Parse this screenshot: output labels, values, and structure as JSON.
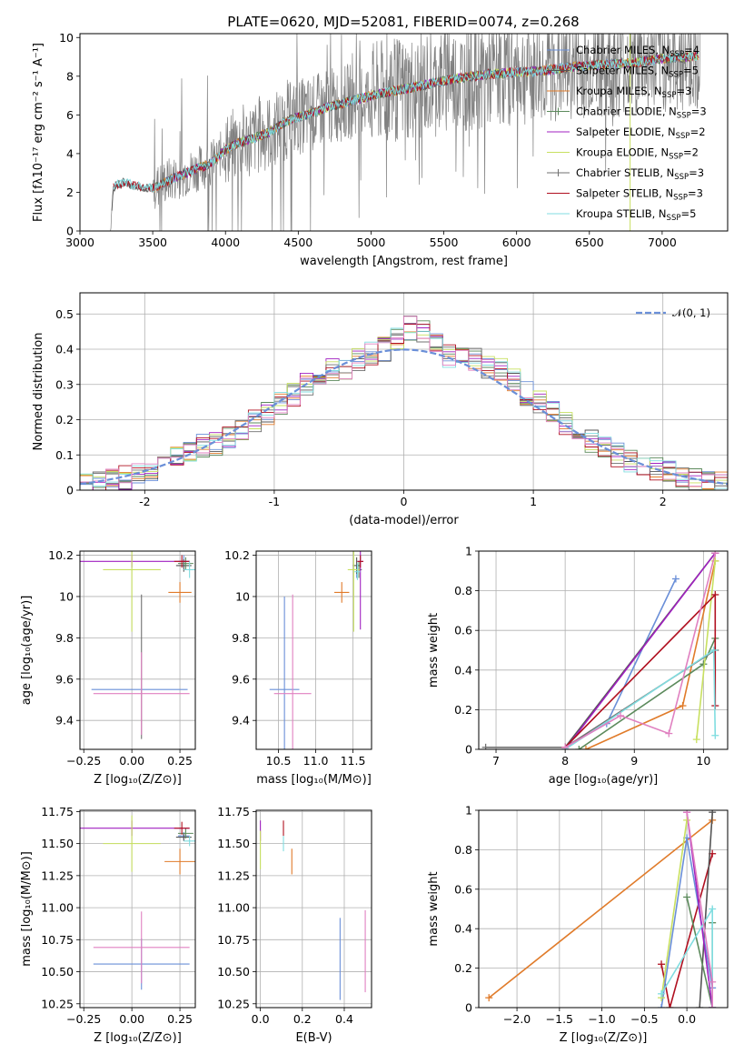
{
  "figure": {
    "title": "PLATE=0620, MJD=52081, FIBERID=0074, z=0.268"
  },
  "colors": [
    "#6a8fd8",
    "#555555",
    "#e07b2a",
    "#5c8a5c",
    "#a020c0",
    "#c8e060",
    "#707070",
    "#b01020",
    "#80dde0",
    "#e080c0"
  ],
  "chart_data": [
    {
      "id": "spectrum",
      "type": "line",
      "title": "PLATE=0620, MJD=52081, FIBERID=0074, z=0.268",
      "xlabel": "wavelength [Angstrom, rest frame]",
      "ylabel": "Flux [fλ10⁻¹⁷ erg cm⁻² s⁻¹ A⁻¹]",
      "xlim": [
        3000,
        7450
      ],
      "ylim": [
        0,
        10.2
      ],
      "xticks": [
        3000,
        3500,
        4000,
        4500,
        5000,
        5500,
        6000,
        6500,
        7000
      ],
      "yticks": [
        0,
        2,
        4,
        6,
        8,
        10
      ],
      "data_trend": {
        "x": [
          3210,
          3230,
          3300,
          3400,
          3500,
          3600,
          3700,
          3800,
          3900,
          4000,
          4100,
          4200,
          4300,
          4400,
          4500,
          4600,
          4700,
          4800,
          4900,
          5000,
          5200,
          5400,
          5600,
          5800,
          6000,
          6200,
          6400,
          6600,
          6800,
          7000,
          7200,
          7260
        ],
        "y": [
          0,
          2.3,
          2.5,
          2.3,
          2.2,
          2.6,
          2.9,
          3.2,
          3.5,
          4.2,
          4.6,
          4.8,
          5.1,
          5.6,
          5.9,
          6.1,
          6.4,
          6.6,
          6.8,
          7.0,
          7.3,
          7.6,
          7.9,
          8.1,
          8.2,
          8.3,
          8.5,
          8.6,
          8.7,
          8.9,
          9.0,
          9.1
        ]
      },
      "legend": [
        {
          "label": "Chabrier MILES, N",
          "sub": "SSP",
          "suffix": "=4"
        },
        {
          "label": "Salpeter MILES, N",
          "sub": "SSP",
          "suffix": "=5"
        },
        {
          "label": "Kroupa MILES, N",
          "sub": "SSP",
          "suffix": "=3"
        },
        {
          "label": "Chabrier ELODIE, N",
          "sub": "SSP",
          "suffix": "=3"
        },
        {
          "label": "Salpeter ELODIE, N",
          "sub": "SSP",
          "suffix": "=2"
        },
        {
          "label": "Kroupa ELODIE, N",
          "sub": "SSP",
          "suffix": "=2"
        },
        {
          "label": "Chabrier STELIB, N",
          "sub": "SSP",
          "suffix": "=3"
        },
        {
          "label": "Salpeter STELIB, N",
          "sub": "SSP",
          "suffix": "=3"
        },
        {
          "label": "Kroupa STELIB, N",
          "sub": "SSP",
          "suffix": "=5"
        }
      ],
      "legend_position": "right"
    },
    {
      "id": "residuals",
      "type": "area",
      "xlabel": "(data-model)/error",
      "ylabel": "Normed distribution",
      "xlim": [
        -2.5,
        2.5
      ],
      "ylim": [
        0,
        0.56
      ],
      "xticks": [
        -2,
        -1,
        0,
        1,
        2
      ],
      "yticks": [
        0.0,
        0.1,
        0.2,
        0.3,
        0.4,
        0.5
      ],
      "reference_curve": "N(0,1)",
      "legend_label": "𝒩(0, 1)",
      "legend_position": "top-right",
      "bins": [
        -2.5,
        -2.4,
        -2.3,
        -2.2,
        -2.1,
        -2.0,
        -1.9,
        -1.8,
        -1.7,
        -1.6,
        -1.5,
        -1.4,
        -1.3,
        -1.2,
        -1.1,
        -1.0,
        -0.9,
        -0.8,
        -0.7,
        -0.6,
        -0.5,
        -0.4,
        -0.3,
        -0.2,
        -0.1,
        0.0,
        0.1,
        0.2,
        0.3,
        0.4,
        0.5,
        0.6,
        0.7,
        0.8,
        0.9,
        1.0,
        1.1,
        1.2,
        1.3,
        1.4,
        1.5,
        1.6,
        1.7,
        1.8,
        1.9,
        2.0,
        2.1,
        2.2,
        2.3,
        2.4,
        2.5
      ],
      "histogram_mean": [
        0.02,
        0.025,
        0.03,
        0.035,
        0.045,
        0.06,
        0.075,
        0.095,
        0.11,
        0.125,
        0.13,
        0.145,
        0.165,
        0.2,
        0.215,
        0.245,
        0.27,
        0.3,
        0.31,
        0.34,
        0.345,
        0.37,
        0.39,
        0.4,
        0.43,
        0.46,
        0.45,
        0.41,
        0.38,
        0.37,
        0.375,
        0.35,
        0.34,
        0.31,
        0.275,
        0.25,
        0.22,
        0.19,
        0.17,
        0.14,
        0.12,
        0.1,
        0.085,
        0.075,
        0.06,
        0.05,
        0.04,
        0.035,
        0.03,
        0.02
      ],
      "histogram_spread": 0.035
    },
    {
      "id": "age-vs-Z",
      "type": "scatter",
      "xlabel": "Z [log₁₀(Z/Z⊙)]",
      "ylabel": "age  [log₁₀(age/yr)]",
      "xlim": [
        -0.27,
        0.33
      ],
      "ylim": [
        9.26,
        10.22
      ],
      "xticks": [
        -0.25,
        0.0,
        0.25
      ],
      "xticklabels": [
        "−0.25",
        "0.00",
        "0.25"
      ],
      "yticks": [
        9.4,
        9.6,
        9.8,
        10.0,
        10.2
      ],
      "points": [
        {
          "x": 0.27,
          "y": 10.17,
          "xerr": 0.03,
          "yerr": 0.03,
          "c": 0
        },
        {
          "x": 0.27,
          "y": 10.15,
          "xerr": 0.04,
          "yerr": 0.03,
          "c": 1
        },
        {
          "x": 0.25,
          "y": 10.02,
          "xerr": 0.06,
          "yerr": 0.05,
          "c": 2
        },
        {
          "x": 0.28,
          "y": 10.16,
          "xerr": 0.04,
          "yerr": 0.03,
          "c": 3
        },
        {
          "x": 0.0,
          "y": 10.17,
          "xerr": 0.3,
          "yerr": 0.03,
          "c": 4
        },
        {
          "x": 0.0,
          "y": 10.13,
          "xerr": 0.15,
          "yerr": 0.3,
          "c": 5
        },
        {
          "x": 0.05,
          "y": 9.66,
          "xerr": 0.0,
          "yerr": 0.35,
          "c": 6
        },
        {
          "x": 0.26,
          "y": 10.17,
          "xerr": 0.04,
          "yerr": 0.03,
          "c": 7
        },
        {
          "x": 0.04,
          "y": 9.55,
          "xerr": 0.25,
          "yerr": 0.0,
          "c": 0
        },
        {
          "x": 0.05,
          "y": 9.53,
          "xerr": 0.25,
          "yerr": 0.2,
          "c": 9
        },
        {
          "x": 0.3,
          "y": 10.13,
          "xerr": 0.03,
          "yerr": 0.04,
          "c": 8
        }
      ]
    },
    {
      "id": "age-vs-mass",
      "type": "scatter",
      "xlabel": "mass [log₁₀(M/M⊙)]",
      "xlim": [
        10.2,
        11.75
      ],
      "ylim": [
        9.26,
        10.22
      ],
      "xticks": [
        10.5,
        11.0,
        11.5
      ],
      "xticklabels": [
        "10.5",
        "11.0",
        "11.5"
      ],
      "yticks": [
        9.4,
        9.6,
        9.8,
        10.0,
        10.2
      ],
      "points": [
        {
          "x": 11.55,
          "y": 10.13,
          "xerr": 0.05,
          "yerr": 0.04,
          "c": 0
        },
        {
          "x": 11.55,
          "y": 10.15,
          "xerr": 0.05,
          "yerr": 0.04,
          "c": 1
        },
        {
          "x": 11.35,
          "y": 10.02,
          "xerr": 0.1,
          "yerr": 0.05,
          "c": 2
        },
        {
          "x": 11.58,
          "y": 10.13,
          "xerr": 0.04,
          "yerr": 0.04,
          "c": 3
        },
        {
          "x": 11.6,
          "y": 10.17,
          "xerr": 0.04,
          "yerr": 0.33,
          "c": 4
        },
        {
          "x": 11.51,
          "y": 10.13,
          "xerr": 0.08,
          "yerr": 0.3,
          "c": 5
        },
        {
          "x": 11.6,
          "y": 10.17,
          "xerr": 0.04,
          "yerr": 0.03,
          "c": 7
        },
        {
          "x": 10.58,
          "y": 9.55,
          "xerr": 0.2,
          "yerr": 0.45,
          "c": 0
        },
        {
          "x": 10.69,
          "y": 9.53,
          "xerr": 0.25,
          "yerr": 0.48,
          "c": 9
        },
        {
          "x": 11.56,
          "y": 10.12,
          "xerr": 0.04,
          "yerr": 0.04,
          "c": 8
        }
      ]
    },
    {
      "id": "weight-vs-age",
      "type": "line",
      "xlabel": "age  [log₁₀(age/yr)]",
      "ylabel": "mass weight",
      "xlim": [
        6.75,
        10.35
      ],
      "ylim": [
        0,
        1.0
      ],
      "xticks": [
        7,
        8,
        9,
        10
      ],
      "yticks": [
        0.0,
        0.2,
        0.4,
        0.6,
        0.8,
        1.0
      ],
      "series": [
        {
          "c": 0,
          "x": [
            8.0,
            8.6,
            9.6
          ],
          "y": [
            0.01,
            0.13,
            0.86
          ]
        },
        {
          "c": 1,
          "x": [
            8.0,
            10.17
          ],
          "y": [
            0.01,
            0.99
          ]
        },
        {
          "c": 2,
          "x": [
            8.3,
            9.7,
            10.17
          ],
          "y": [
            0.0,
            0.22,
            0.95
          ]
        },
        {
          "c": 3,
          "x": [
            8.2,
            10.0,
            10.17
          ],
          "y": [
            0.0,
            0.43,
            0.56
          ]
        },
        {
          "c": 4,
          "x": [
            8.0,
            10.17
          ],
          "y": [
            0.0,
            0.99
          ]
        },
        {
          "c": 5,
          "x": [
            9.9,
            10.17
          ],
          "y": [
            0.05,
            0.95
          ]
        },
        {
          "c": 6,
          "x": [
            6.85,
            8.0,
            10.17
          ],
          "y": [
            0.01,
            0.01,
            0.5
          ]
        },
        {
          "c": 7,
          "x": [
            8.0,
            10.17,
            10.17
          ],
          "y": [
            0.01,
            0.78,
            0.22
          ]
        },
        {
          "c": 8,
          "x": [
            8.0,
            10.15,
            10.17
          ],
          "y": [
            0.0,
            0.5,
            0.07
          ]
        },
        {
          "c": 9,
          "x": [
            8.0,
            8.8,
            9.5,
            10.17
          ],
          "y": [
            0.01,
            0.17,
            0.08,
            0.99
          ]
        }
      ]
    },
    {
      "id": "mass-vs-Z",
      "type": "scatter",
      "xlabel": "Z [log₁₀(Z/Z⊙)]",
      "ylabel": "mass [log₁₀(M/M⊙)]",
      "xlim": [
        -0.27,
        0.33
      ],
      "ylim": [
        10.22,
        11.76
      ],
      "xticks": [
        -0.25,
        0.0,
        0.25
      ],
      "xticklabels": [
        "−0.25",
        "0.00",
        "0.25"
      ],
      "yticks": [
        10.25,
        10.5,
        10.75,
        11.0,
        11.25,
        11.5,
        11.75
      ],
      "yticklabels": [
        "10.25",
        "10.50",
        "10.75",
        "11.00",
        "11.25",
        "11.50",
        "11.75"
      ],
      "points": [
        {
          "x": 0.27,
          "y": 11.56,
          "xerr": 0.03,
          "yerr": 0.03,
          "c": 0
        },
        {
          "x": 0.27,
          "y": 11.55,
          "xerr": 0.04,
          "yerr": 0.03,
          "c": 1
        },
        {
          "x": 0.25,
          "y": 11.36,
          "xerr": 0.08,
          "yerr": 0.1,
          "c": 2
        },
        {
          "x": 0.28,
          "y": 11.58,
          "xerr": 0.04,
          "yerr": 0.04,
          "c": 3
        },
        {
          "x": 0.0,
          "y": 11.62,
          "xerr": 0.3,
          "yerr": 0.06,
          "c": 4
        },
        {
          "x": 0.0,
          "y": 11.5,
          "xerr": 0.15,
          "yerr": 0.22,
          "c": 5
        },
        {
          "x": 0.26,
          "y": 11.62,
          "xerr": 0.04,
          "yerr": 0.05,
          "c": 7
        },
        {
          "x": 0.05,
          "y": 10.56,
          "xerr": 0.25,
          "yerr": 0.2,
          "c": 0
        },
        {
          "x": 0.05,
          "y": 10.69,
          "xerr": 0.25,
          "yerr": 0.28,
          "c": 9
        },
        {
          "x": 0.3,
          "y": 11.52,
          "xerr": 0.03,
          "yerr": 0.04,
          "c": 8
        }
      ]
    },
    {
      "id": "mass-vs-EBV",
      "type": "scatter",
      "xlabel": "E(B-V)",
      "xlim": [
        -0.02,
        0.53
      ],
      "ylim": [
        10.22,
        11.76
      ],
      "xticks": [
        0.0,
        0.2,
        0.4
      ],
      "xticklabels": [
        "0.0",
        "0.2",
        "0.4"
      ],
      "yticks": [
        10.25,
        10.5,
        10.75,
        11.0,
        11.25,
        11.5,
        11.75
      ],
      "yticklabels": [
        "10.25",
        "10.50",
        "10.75",
        "11.00",
        "11.25",
        "11.50",
        "11.75"
      ],
      "points": [
        {
          "x": 0.0,
          "y": 11.6,
          "xerr": 0.0,
          "yerr": 0.08,
          "c": 4
        },
        {
          "x": 0.0,
          "y": 11.45,
          "xerr": 0.0,
          "yerr": 0.15,
          "c": 5
        },
        {
          "x": 0.11,
          "y": 11.62,
          "xerr": 0.0,
          "yerr": 0.06,
          "c": 7
        },
        {
          "x": 0.11,
          "y": 11.5,
          "xerr": 0.0,
          "yerr": 0.06,
          "c": 8
        },
        {
          "x": 0.15,
          "y": 11.36,
          "xerr": 0.0,
          "yerr": 0.1,
          "c": 2
        },
        {
          "x": 0.38,
          "y": 10.6,
          "xerr": 0.0,
          "yerr": 0.32,
          "c": 0
        },
        {
          "x": 0.5,
          "y": 10.66,
          "xerr": 0.0,
          "yerr": 0.32,
          "c": 9
        }
      ]
    },
    {
      "id": "weight-vs-Z",
      "type": "line",
      "xlabel": "Z [log₁₀(Z/Z⊙)]",
      "ylabel": "mass weight",
      "xlim": [
        -2.45,
        0.48
      ],
      "ylim": [
        0,
        1.0
      ],
      "xticks": [
        -2.0,
        -1.5,
        -1.0,
        -0.5,
        0.0
      ],
      "xticklabels": [
        "−2.0",
        "−1.5",
        "−1.0",
        "−0.5",
        "0.0"
      ],
      "yticks": [
        0.0,
        0.2,
        0.4,
        0.6,
        0.8,
        1.0
      ],
      "series": [
        {
          "c": 2,
          "x": [
            -2.33,
            0.3
          ],
          "y": [
            0.05,
            0.95
          ]
        },
        {
          "c": 7,
          "x": [
            -0.3,
            -0.2,
            0.3
          ],
          "y": [
            0.22,
            0.0,
            0.78
          ]
        },
        {
          "c": 1,
          "x": [
            0.15,
            0.3
          ],
          "y": [
            0.0,
            0.99
          ]
        },
        {
          "c": 0,
          "x": [
            -0.3,
            0.0,
            0.3
          ],
          "y": [
            0.0,
            0.86,
            0.1
          ]
        },
        {
          "c": 3,
          "x": [
            0.0,
            0.3,
            0.3
          ],
          "y": [
            0.56,
            0.0,
            0.43
          ]
        },
        {
          "c": 4,
          "x": [
            0.0,
            0.3
          ],
          "y": [
            0.99,
            0.0
          ]
        },
        {
          "c": 5,
          "x": [
            -0.3,
            0.0
          ],
          "y": [
            0.05,
            0.95
          ]
        },
        {
          "c": 8,
          "x": [
            -0.3,
            0.3,
            0.3
          ],
          "y": [
            0.07,
            0.5,
            0.0
          ]
        },
        {
          "c": 9,
          "x": [
            0.0,
            0.3,
            0.3
          ],
          "y": [
            0.99,
            0.13,
            0.0
          ]
        }
      ]
    }
  ]
}
